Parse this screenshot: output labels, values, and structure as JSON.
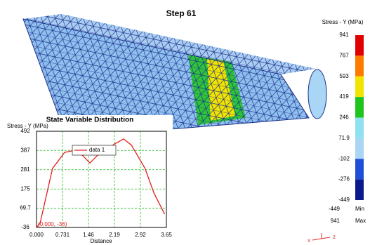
{
  "step_title": "Step   61",
  "colorbar": {
    "title": "Stress - Y (MPa)",
    "labels": [
      "941",
      "767",
      "593",
      "419",
      "246",
      "71.9",
      "-102",
      "-276",
      "-449"
    ],
    "colors": [
      "#e00000",
      "#ff7a00",
      "#f2e400",
      "#1fc41f",
      "#8fe0f0",
      "#a9d6f5",
      "#1f4fd6",
      "#0a1a8a"
    ],
    "min_value": "-449",
    "min_text": "Min",
    "max_value": "941",
    "max_text": "Max"
  },
  "triad": {
    "x": "x",
    "z": "z"
  },
  "chart_data": {
    "type": "line",
    "title": "State Variable Distribution",
    "y_label": "Stress - Y (MPa)",
    "x_label": "Distance",
    "x": [
      0.0,
      0.1,
      0.45,
      0.79,
      1.14,
      1.5,
      1.74,
      2.2,
      2.45,
      2.67,
      3.05,
      3.3,
      3.6
    ],
    "series": [
      {
        "name": "data 1",
        "color": "#e02020",
        "values": [
          -36,
          -13,
          288,
          376,
          390,
          318,
          365,
          423,
          450,
          415,
          288,
          153,
          37
        ]
      }
    ],
    "xlim": [
      0,
      3.65
    ],
    "ylim": [
      -36,
      492
    ],
    "xticks": [
      {
        "value": 0,
        "label": "0.000"
      },
      0.731,
      1.46,
      2.19,
      2.92,
      3.65
    ],
    "yticks": [
      -36,
      69.7,
      175,
      281,
      387,
      492
    ],
    "grid": true,
    "grid_color": "#22bb22",
    "annotation": "(0.000, -36)"
  }
}
